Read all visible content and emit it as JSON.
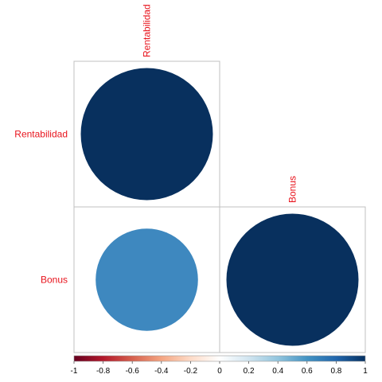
{
  "chart_data": {
    "type": "heatmap",
    "subtype": "correlation-circle-plot-lower-triangle",
    "variables": [
      "Rentabilidad",
      "Bonus"
    ],
    "matrix": [
      [
        1,
        null
      ],
      [
        0.6,
        1
      ]
    ],
    "cells": [
      {
        "row": "Rentabilidad",
        "col": "Rentabilidad",
        "value": 1,
        "color": "#08305E"
      },
      {
        "row": "Bonus",
        "col": "Rentabilidad",
        "value": 0.6,
        "color": "#3E88BF"
      },
      {
        "row": "Bonus",
        "col": "Bonus",
        "value": 1,
        "color": "#08305E"
      }
    ],
    "label_color": "#E8141D",
    "colorbar": {
      "range": [
        -1,
        1
      ],
      "tick_labels": [
        "-1",
        "-0.8",
        "-0.6",
        "-0.4",
        "-0.2",
        "0",
        "0.2",
        "0.4",
        "0.6",
        "0.8",
        "1"
      ],
      "tick_values": [
        -1,
        -0.8,
        -0.6,
        -0.4,
        -0.2,
        0,
        0.2,
        0.4,
        0.6,
        0.8,
        1
      ],
      "colors": [
        "#67001F",
        "#B2182B",
        "#D6604D",
        "#F4A582",
        "#FDDBC7",
        "#FFFFFF",
        "#D1E5F0",
        "#92C5DE",
        "#4393C3",
        "#2166AC",
        "#053061"
      ]
    },
    "grid": true
  }
}
